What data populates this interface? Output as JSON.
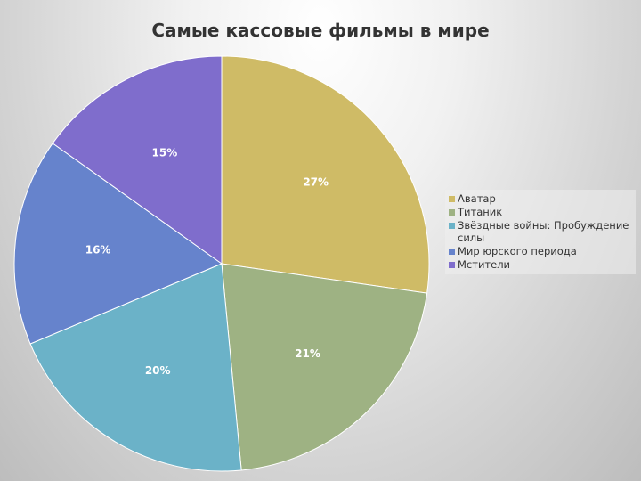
{
  "chart_data": {
    "type": "pie",
    "title": "Самые кассовые фильмы в мире",
    "categories": [
      "Аватар",
      "Титаник",
      "Звёздные войны: Пробуждение силы",
      "Мир юрского периода",
      "Мстители"
    ],
    "values": [
      27,
      21,
      20,
      16,
      15
    ],
    "labels": [
      "27%",
      "21%",
      "20%",
      "16%",
      "15%"
    ],
    "colors": [
      "#cfbb66",
      "#9eb283",
      "#6bb2c8",
      "#6683cc",
      "#7f6dcc"
    ],
    "legend_position": "right"
  }
}
